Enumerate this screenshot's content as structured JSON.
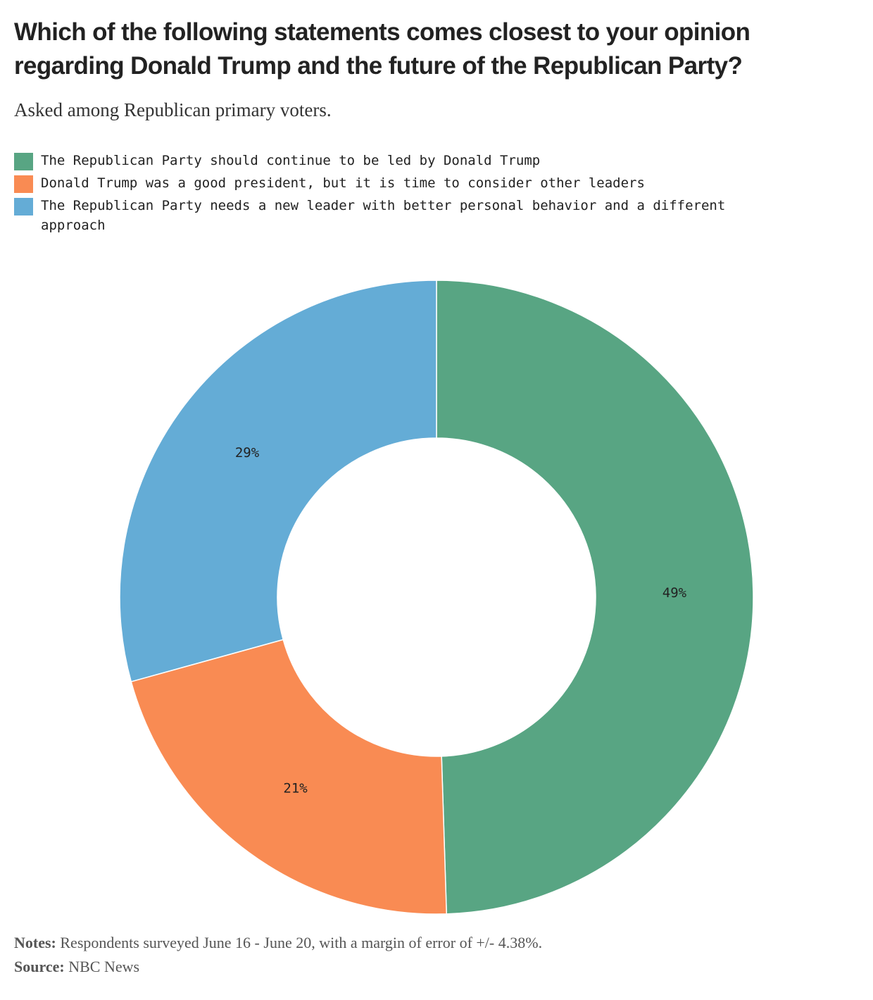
{
  "colors": {
    "green": "#58a583",
    "orange": "#f98b53",
    "blue": "#64acd6"
  },
  "chart_data": {
    "type": "pie",
    "style": "donut",
    "title": "Which of the following statements comes closest to your opinion regarding Donald Trump and the future of the Republican Party?",
    "subtitle": "Asked among Republican primary voters.",
    "categories": [
      "The Republican Party should continue to be led by Donald Trump",
      "Donald Trump was a good president, but it is time to consider other leaders",
      "The Republican Party needs a new leader with better personal behavior and a different approach"
    ],
    "values": [
      49,
      21,
      29
    ],
    "labels": [
      "49%",
      "21%",
      "29%"
    ],
    "colors": [
      "#58a583",
      "#f98b53",
      "#64acd6"
    ],
    "legend": "top-left"
  },
  "footer": {
    "notes_label": "Notes:",
    "notes_text": "Respondents surveyed June 16 - June 20, with a margin of error of +/- 4.38%.",
    "source_label": "Source:",
    "source_text": "NBC News"
  }
}
